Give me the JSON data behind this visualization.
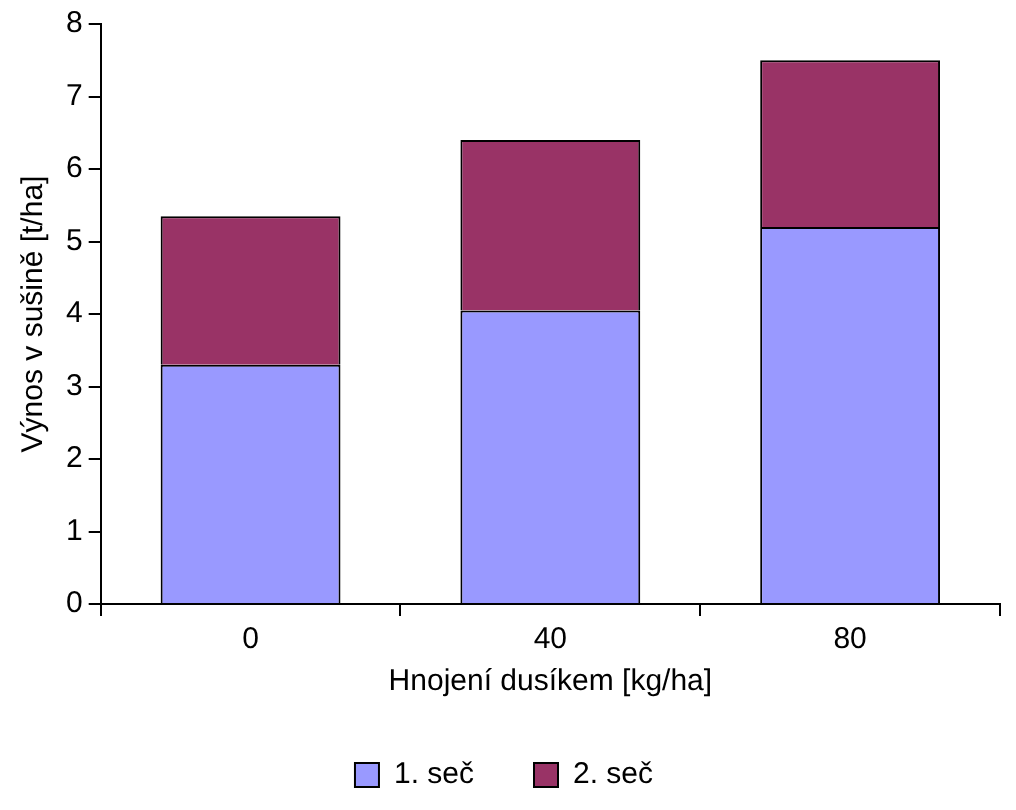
{
  "chart_data": {
    "type": "bar",
    "stacked": true,
    "xlabel": "Hnojení dusíkem [kg/ha]",
    "ylabel": "Výnos v sušině [t/ha]",
    "categories": [
      "0",
      "40",
      "80"
    ],
    "series": [
      {
        "name": "1. seč",
        "color": "#9999ff",
        "values": [
          3.3,
          4.05,
          5.2
        ]
      },
      {
        "name": "2. seč",
        "color": "#993366",
        "values": [
          2.05,
          2.35,
          2.3
        ]
      }
    ],
    "ylim": [
      0,
      8
    ],
    "yticks": [
      0,
      1,
      2,
      3,
      4,
      5,
      6,
      7,
      8
    ],
    "grid": false,
    "legend": "bottom"
  }
}
